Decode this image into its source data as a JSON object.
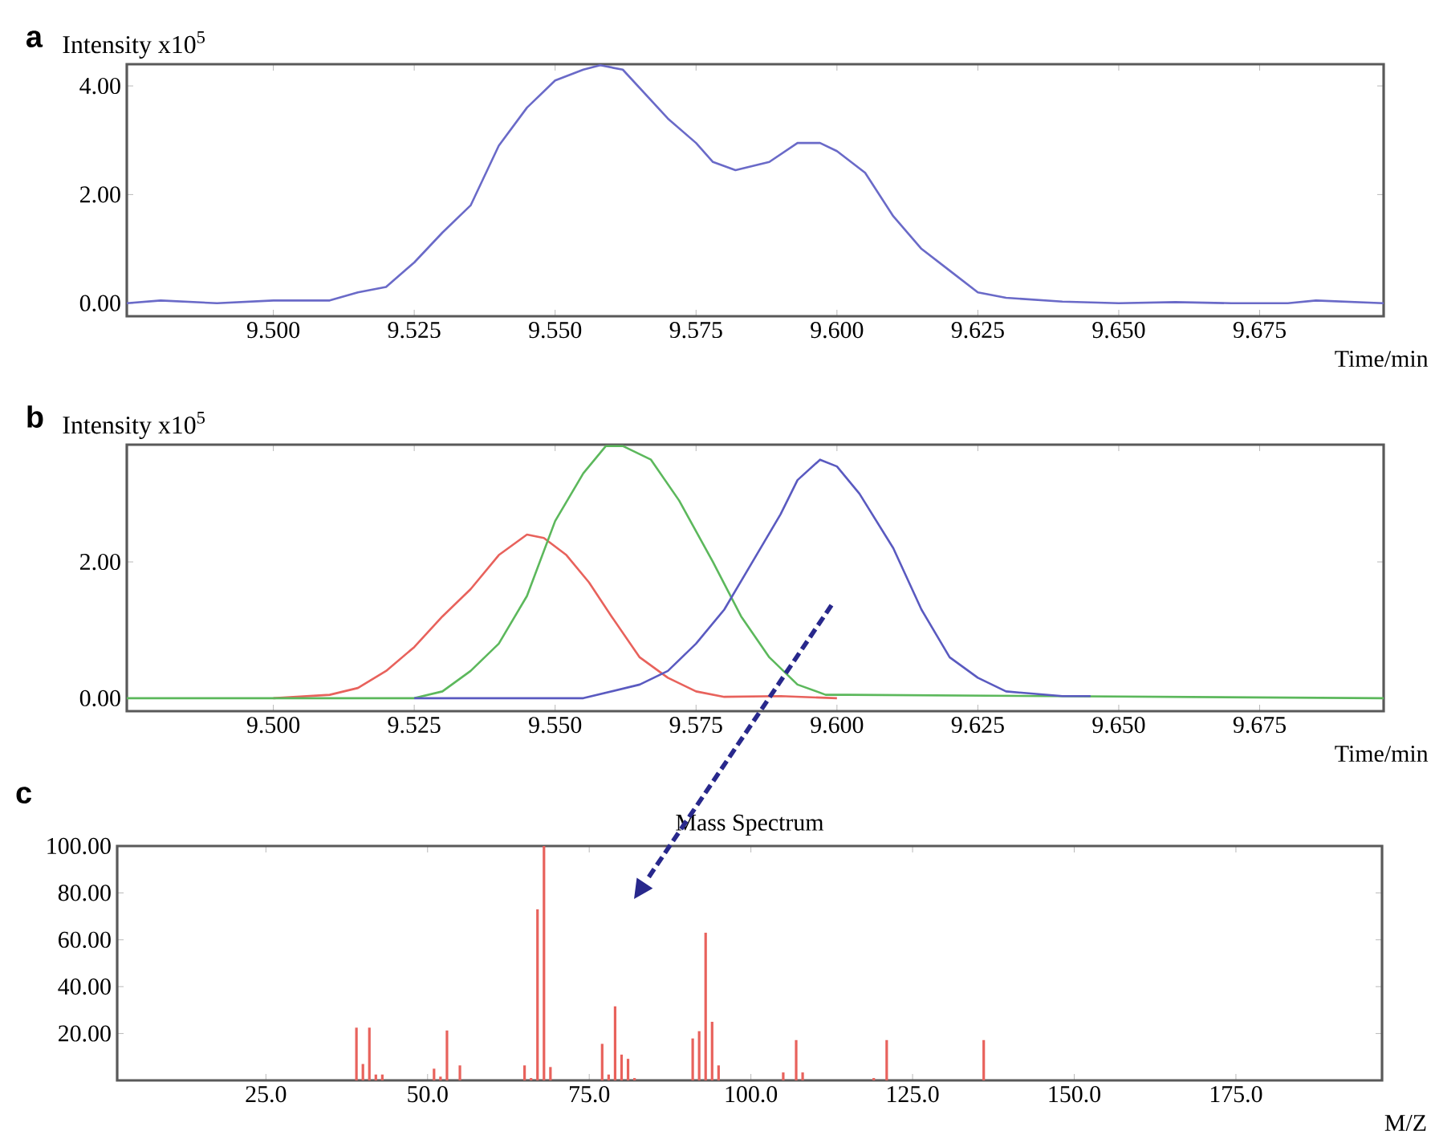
{
  "chart_data": [
    {
      "type": "line",
      "title": "a",
      "ylabel": "Intensity x10$^{5}$",
      "xlabel": "Time/min",
      "xlim": [
        9.474,
        9.697
      ],
      "ylim": [
        -0.24,
        4.4
      ],
      "xticks": [
        {
          "value": 9.5,
          "label": "9.500"
        },
        {
          "value": 9.525,
          "label": "9.525"
        },
        {
          "value": 9.55,
          "label": "9.550"
        },
        {
          "value": 9.575,
          "label": "9.575"
        },
        {
          "value": 9.6,
          "label": "9.600"
        },
        {
          "value": 9.625,
          "label": "9.625"
        },
        {
          "value": 9.65,
          "label": "9.650"
        },
        {
          "value": 9.675,
          "label": "9.675"
        }
      ],
      "yticks": [
        {
          "value": 0,
          "label": "0.00"
        },
        {
          "value": 2,
          "label": "2.00"
        },
        {
          "value": 4,
          "label": "4.00"
        }
      ],
      "series": [
        {
          "color": "#6a6ac8",
          "x": [
            9.474,
            9.48,
            9.49,
            9.5,
            9.51,
            9.515,
            9.52,
            9.525,
            9.53,
            9.535,
            9.54,
            9.545,
            9.55,
            9.555,
            9.558,
            9.562,
            9.57,
            9.575,
            9.578,
            9.582,
            9.588,
            9.593,
            9.597,
            9.6,
            9.605,
            9.61,
            9.615,
            9.62,
            9.625,
            9.63,
            9.64,
            9.65,
            9.66,
            9.67,
            9.68,
            9.685,
            9.697
          ],
          "values": [
            0.0,
            0.05,
            0.0,
            0.05,
            0.05,
            0.2,
            0.3,
            0.75,
            1.3,
            1.8,
            2.9,
            3.6,
            4.1,
            4.3,
            4.38,
            4.3,
            3.4,
            2.95,
            2.6,
            2.45,
            2.6,
            2.95,
            2.95,
            2.8,
            2.4,
            1.6,
            1.0,
            0.6,
            0.2,
            0.1,
            0.03,
            0.0,
            0.02,
            0.0,
            0.0,
            0.05,
            0.0
          ]
        }
      ]
    },
    {
      "type": "line",
      "title": "b",
      "ylabel": "Intensity x10$^{5}$",
      "xlabel": "Time/min",
      "xlim": [
        9.474,
        9.697
      ],
      "ylim": [
        -0.19,
        3.72
      ],
      "xticks": [
        {
          "value": 9.5,
          "label": "9.500"
        },
        {
          "value": 9.525,
          "label": "9.525"
        },
        {
          "value": 9.55,
          "label": "9.550"
        },
        {
          "value": 9.575,
          "label": "9.575"
        },
        {
          "value": 9.6,
          "label": "9.600"
        },
        {
          "value": 9.625,
          "label": "9.625"
        },
        {
          "value": 9.65,
          "label": "9.650"
        },
        {
          "value": 9.675,
          "label": "9.675"
        }
      ],
      "yticks": [
        {
          "value": 0,
          "label": "0.00"
        },
        {
          "value": 2,
          "label": "2.00"
        }
      ],
      "series": [
        {
          "color": "#e8625c",
          "x": [
            9.5,
            9.51,
            9.515,
            9.52,
            9.525,
            9.53,
            9.535,
            9.54,
            9.545,
            9.548,
            9.552,
            9.556,
            9.56,
            9.565,
            9.57,
            9.575,
            9.58,
            9.59,
            9.6
          ],
          "values": [
            0.0,
            0.05,
            0.15,
            0.4,
            0.75,
            1.2,
            1.6,
            2.1,
            2.4,
            2.35,
            2.1,
            1.7,
            1.2,
            0.6,
            0.3,
            0.1,
            0.02,
            0.03,
            0.0
          ]
        },
        {
          "color": "#5cb85c",
          "x": [
            9.474,
            9.525,
            9.53,
            9.535,
            9.54,
            9.545,
            9.55,
            9.555,
            9.559,
            9.562,
            9.567,
            9.572,
            9.578,
            9.583,
            9.588,
            9.593,
            9.598,
            9.602,
            9.697
          ],
          "values": [
            0.0,
            0.0,
            0.1,
            0.4,
            0.8,
            1.5,
            2.6,
            3.3,
            3.7,
            3.7,
            3.5,
            2.9,
            2.0,
            1.2,
            0.6,
            0.2,
            0.05,
            0.05,
            0.0
          ]
        },
        {
          "color": "#5a5ac0",
          "x": [
            9.525,
            9.555,
            9.565,
            9.57,
            9.575,
            9.58,
            9.585,
            9.59,
            9.593,
            9.597,
            9.6,
            9.604,
            9.61,
            9.615,
            9.62,
            9.625,
            9.63,
            9.64,
            9.645
          ],
          "values": [
            0.0,
            0.0,
            0.2,
            0.4,
            0.8,
            1.3,
            2.0,
            2.7,
            3.2,
            3.5,
            3.4,
            3.0,
            2.2,
            1.3,
            0.6,
            0.3,
            0.1,
            0.03,
            0.03
          ]
        }
      ]
    },
    {
      "type": "bar",
      "title": "c",
      "subtitle": "Mass Spectrum",
      "xlabel": "M/Z",
      "xlim": [
        2,
        197.6
      ],
      "ylim": [
        0,
        100
      ],
      "xticks": [
        {
          "value": 25,
          "label": "25.0"
        },
        {
          "value": 50,
          "label": "50.0"
        },
        {
          "value": 75,
          "label": "75.0"
        },
        {
          "value": 100,
          "label": "100.0"
        },
        {
          "value": 125,
          "label": "125.0"
        },
        {
          "value": 150,
          "label": "150.0"
        },
        {
          "value": 175,
          "label": "175.0"
        }
      ],
      "yticks": [
        {
          "value": 20,
          "label": "20.00"
        },
        {
          "value": 40,
          "label": "40.00"
        },
        {
          "value": 60,
          "label": "60.00"
        },
        {
          "value": 80,
          "label": "80.00"
        },
        {
          "value": 100,
          "label": "100.00"
        }
      ],
      "color": "#e8625c",
      "x": [
        39,
        40,
        41,
        42,
        43,
        51,
        52,
        53,
        55,
        65,
        66,
        67,
        68,
        69,
        77,
        78,
        79,
        80,
        81,
        82,
        91,
        92,
        93,
        94,
        95,
        105,
        107,
        108,
        119,
        121,
        136
      ],
      "values": [
        22.5,
        7,
        22.5,
        2.5,
        2.5,
        5,
        1.6,
        21.3,
        6.4,
        6.4,
        1,
        73,
        100,
        5.7,
        15.6,
        2.5,
        31.6,
        11,
        9.2,
        1,
        17.9,
        21,
        63,
        25,
        6.4,
        3.4,
        17.2,
        3.4,
        1,
        17.2,
        17.2
      ]
    }
  ]
}
